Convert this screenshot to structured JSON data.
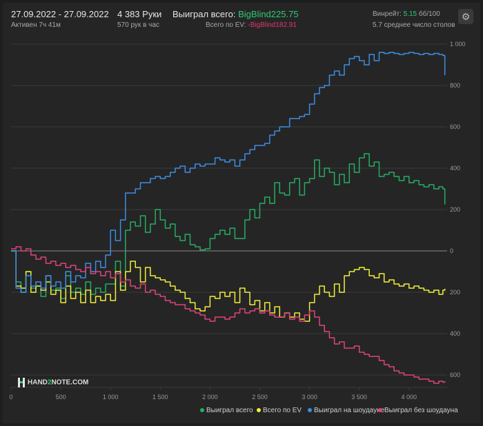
{
  "header": {
    "date_range": "27.09.2022 - 27.09.2022",
    "active": "Активен 7ч 41м",
    "hands": "4 383 Руки",
    "hands_per_hour": "570 рук в час",
    "won_total_label": "Выиграл всего:",
    "won_total_value": "BigBlind225.75",
    "ev_label": "Всего по EV:",
    "ev_value": "-BigBlind182.91",
    "winrate_label": "Винрейт:",
    "winrate_value": "5.15",
    "winrate_suffix": "бб/100",
    "avg_tables": "5.7 среднее число столов"
  },
  "logo": {
    "prefix": "HAND",
    "two": "2",
    "suffix": "NOTE.COM"
  },
  "colors": {
    "won": "#27ae60",
    "ev": "#f1f03a",
    "showdown": "#3d8ee5",
    "non_showdown": "#e0457b",
    "grid": "#3c3c3c",
    "zero": "#8a8a8a"
  },
  "chart_data": {
    "type": "line",
    "title": "",
    "xlabel": "",
    "ylabel": "",
    "xlim": [
      0,
      4383
    ],
    "ylim": [
      -660,
      1000
    ],
    "x_ticks": [
      0,
      500,
      1000,
      1500,
      2000,
      2500,
      3000,
      3500,
      4000
    ],
    "x_tick_labels": [
      "0",
      "500",
      "1 000",
      "1 500",
      "2 000",
      "2 500",
      "3 000",
      "3 500",
      "4 000"
    ],
    "y_ticks": [
      1000,
      800,
      600,
      400,
      200,
      0,
      -200,
      -400,
      -600
    ],
    "y_tick_labels": [
      "1 000",
      "800",
      "600",
      "400",
      "200",
      "0",
      "200",
      "400",
      "600"
    ],
    "grid": true,
    "legend_position": "bottom-right",
    "series": [
      {
        "name": "Выиграл всего",
        "color_key": "won",
        "x": [
          0,
          50,
          100,
          150,
          200,
          250,
          300,
          350,
          400,
          450,
          500,
          550,
          600,
          650,
          700,
          750,
          800,
          850,
          900,
          950,
          1000,
          1050,
          1100,
          1150,
          1200,
          1250,
          1300,
          1350,
          1400,
          1450,
          1500,
          1550,
          1600,
          1650,
          1700,
          1750,
          1800,
          1850,
          1900,
          1950,
          2000,
          2050,
          2100,
          2150,
          2200,
          2250,
          2300,
          2350,
          2400,
          2450,
          2500,
          2550,
          2600,
          2650,
          2700,
          2750,
          2800,
          2850,
          2900,
          2950,
          3000,
          3050,
          3100,
          3150,
          3200,
          3250,
          3300,
          3350,
          3400,
          3450,
          3500,
          3550,
          3600,
          3650,
          3700,
          3750,
          3800,
          3850,
          3900,
          3950,
          4000,
          4050,
          4100,
          4150,
          4200,
          4250,
          4300,
          4340,
          4360
        ],
        "y": [
          0,
          -150,
          -200,
          -100,
          -180,
          -170,
          -220,
          -120,
          -190,
          -180,
          -230,
          -120,
          -200,
          -180,
          -210,
          -150,
          -210,
          -180,
          -200,
          -160,
          -160,
          -50,
          -170,
          100,
          140,
          120,
          170,
          90,
          130,
          200,
          150,
          110,
          130,
          70,
          50,
          80,
          30,
          20,
          5,
          10,
          60,
          80,
          100,
          80,
          110,
          60,
          60,
          150,
          200,
          160,
          230,
          260,
          230,
          330,
          280,
          270,
          330,
          350,
          270,
          330,
          350,
          440,
          360,
          400,
          380,
          320,
          370,
          330,
          420,
          380,
          450,
          470,
          410,
          430,
          360,
          370,
          380,
          360,
          340,
          360,
          330,
          340,
          320,
          310,
          320,
          300,
          310,
          300,
          225
        ]
      },
      {
        "name": "Всего по EV",
        "color_key": "ev",
        "x": [
          0,
          50,
          100,
          150,
          200,
          250,
          300,
          350,
          400,
          450,
          500,
          550,
          600,
          650,
          700,
          750,
          800,
          850,
          900,
          950,
          1000,
          1050,
          1100,
          1150,
          1200,
          1250,
          1300,
          1350,
          1400,
          1450,
          1500,
          1550,
          1600,
          1650,
          1700,
          1750,
          1800,
          1850,
          1900,
          1950,
          2000,
          2050,
          2100,
          2150,
          2200,
          2250,
          2300,
          2350,
          2400,
          2450,
          2500,
          2550,
          2600,
          2650,
          2700,
          2750,
          2800,
          2850,
          2900,
          2950,
          3000,
          3050,
          3100,
          3150,
          3200,
          3250,
          3300,
          3350,
          3400,
          3450,
          3500,
          3550,
          3600,
          3650,
          3700,
          3750,
          3800,
          3850,
          3900,
          3950,
          4000,
          4050,
          4100,
          4150,
          4200,
          4250,
          4300,
          4340,
          4360
        ],
        "y": [
          0,
          -170,
          -180,
          -100,
          -200,
          -170,
          -190,
          -150,
          -210,
          -190,
          -250,
          -170,
          -230,
          -200,
          -250,
          -190,
          -250,
          -220,
          -240,
          -210,
          -240,
          -100,
          -190,
          -100,
          -50,
          -80,
          -150,
          -80,
          -120,
          -130,
          -140,
          -150,
          -170,
          -190,
          -200,
          -230,
          -250,
          -280,
          -290,
          -270,
          -220,
          -230,
          -200,
          -220,
          -200,
          -250,
          -180,
          -200,
          -260,
          -240,
          -290,
          -250,
          -300,
          -270,
          -320,
          -300,
          -320,
          -300,
          -330,
          -340,
          -250,
          -210,
          -170,
          -200,
          -220,
          -160,
          -200,
          -120,
          -100,
          -90,
          -80,
          -90,
          -120,
          -130,
          -110,
          -150,
          -140,
          -160,
          -170,
          -160,
          -180,
          -170,
          -180,
          -190,
          -200,
          -190,
          -210,
          -190,
          -183
        ]
      },
      {
        "name": "Выиграл на шоудауне",
        "color_key": "showdown",
        "x": [
          0,
          50,
          100,
          150,
          200,
          250,
          300,
          350,
          400,
          450,
          500,
          550,
          600,
          650,
          700,
          750,
          800,
          850,
          900,
          950,
          1000,
          1050,
          1100,
          1150,
          1200,
          1250,
          1300,
          1350,
          1400,
          1450,
          1500,
          1550,
          1600,
          1650,
          1700,
          1750,
          1800,
          1850,
          1900,
          1950,
          2000,
          2050,
          2100,
          2150,
          2200,
          2250,
          2300,
          2350,
          2400,
          2450,
          2500,
          2550,
          2600,
          2650,
          2700,
          2750,
          2800,
          2850,
          2900,
          2950,
          3000,
          3050,
          3100,
          3150,
          3200,
          3250,
          3300,
          3350,
          3400,
          3450,
          3500,
          3550,
          3600,
          3650,
          3700,
          3750,
          3800,
          3850,
          3900,
          3950,
          4000,
          4050,
          4100,
          4150,
          4200,
          4250,
          4300,
          4340,
          4360
        ],
        "y": [
          0,
          -180,
          -200,
          -120,
          -170,
          -150,
          -180,
          -120,
          -170,
          -150,
          -180,
          -100,
          -150,
          -120,
          -130,
          -60,
          -100,
          -50,
          -80,
          -20,
          100,
          50,
          150,
          280,
          280,
          300,
          330,
          330,
          350,
          360,
          350,
          360,
          380,
          400,
          410,
          380,
          400,
          420,
          410,
          420,
          420,
          450,
          440,
          430,
          440,
          410,
          440,
          470,
          490,
          510,
          510,
          520,
          560,
          580,
          600,
          600,
          640,
          640,
          650,
          660,
          710,
          760,
          790,
          800,
          850,
          870,
          850,
          900,
          930,
          940,
          920,
          900,
          950,
          920,
          960,
          955,
          960,
          955,
          950,
          955,
          960,
          955,
          950,
          955,
          950,
          955,
          950,
          945,
          850
        ]
      },
      {
        "name": "Выиграл без шоудауна",
        "color_key": "non_showdown",
        "x": [
          0,
          50,
          100,
          150,
          200,
          250,
          300,
          350,
          400,
          450,
          500,
          550,
          600,
          650,
          700,
          750,
          800,
          850,
          900,
          950,
          1000,
          1050,
          1100,
          1150,
          1200,
          1250,
          1300,
          1350,
          1400,
          1450,
          1500,
          1550,
          1600,
          1650,
          1700,
          1750,
          1800,
          1850,
          1900,
          1950,
          2000,
          2050,
          2100,
          2150,
          2200,
          2250,
          2300,
          2350,
          2400,
          2450,
          2500,
          2550,
          2600,
          2650,
          2700,
          2750,
          2800,
          2850,
          2900,
          2950,
          3000,
          3050,
          3100,
          3150,
          3200,
          3250,
          3300,
          3350,
          3400,
          3450,
          3500,
          3550,
          3600,
          3650,
          3700,
          3750,
          3800,
          3850,
          3900,
          3950,
          4000,
          4050,
          4100,
          4150,
          4200,
          4250,
          4300,
          4340,
          4360
        ],
        "y": [
          10,
          20,
          0,
          10,
          -20,
          -40,
          -30,
          -60,
          -50,
          -70,
          -60,
          -80,
          -70,
          -90,
          -100,
          -80,
          -110,
          -100,
          -120,
          -100,
          -130,
          -110,
          -150,
          -140,
          -170,
          -180,
          -160,
          -200,
          -190,
          -210,
          -220,
          -240,
          -250,
          -260,
          -260,
          -280,
          -290,
          -300,
          -310,
          -330,
          -340,
          -320,
          -320,
          -330,
          -320,
          -300,
          -280,
          -300,
          -290,
          -280,
          -300,
          -290,
          -310,
          -320,
          -320,
          -300,
          -330,
          -320,
          -340,
          -310,
          -290,
          -320,
          -360,
          -390,
          -420,
          -450,
          -440,
          -470,
          -470,
          -460,
          -490,
          -500,
          -510,
          -510,
          -530,
          -550,
          -560,
          -580,
          -590,
          -600,
          -600,
          -610,
          -620,
          -620,
          -630,
          -640,
          -630,
          -635,
          -630
        ]
      }
    ]
  },
  "legend": [
    {
      "label": "Выиграл всего",
      "color_key": "won"
    },
    {
      "label": "Всего по EV",
      "color_key": "ev"
    },
    {
      "label": "Выиграл на шоудауне",
      "color_key": "showdown"
    },
    {
      "label": "Выиграл без шоудауна",
      "color_key": "non_showdown"
    }
  ]
}
